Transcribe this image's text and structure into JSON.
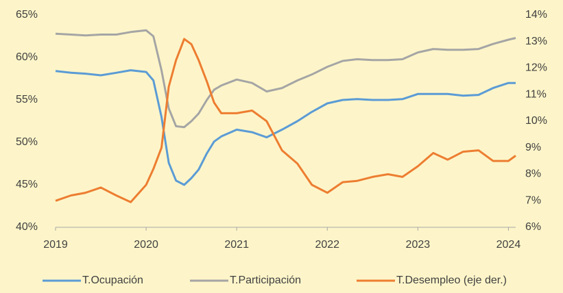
{
  "chart_data": {
    "type": "line",
    "x": [
      2019,
      2019.17,
      2019.33,
      2019.5,
      2019.67,
      2019.83,
      2020,
      2020.08,
      2020.17,
      2020.25,
      2020.33,
      2020.42,
      2020.5,
      2020.58,
      2020.67,
      2020.75,
      2020.83,
      2021,
      2021.17,
      2021.33,
      2021.5,
      2021.67,
      2021.83,
      2022,
      2022.17,
      2022.33,
      2022.5,
      2022.67,
      2022.83,
      2023,
      2023.17,
      2023.33,
      2023.5,
      2023.67,
      2023.83,
      2024,
      2024.08
    ],
    "series": [
      {
        "name": "T.Ocupación",
        "color": "#5b9bd5",
        "axis": "y",
        "values": [
          58.4,
          58.2,
          58.1,
          57.9,
          58.2,
          58.5,
          58.3,
          57.3,
          53.0,
          47.6,
          45.5,
          45.0,
          45.8,
          46.8,
          48.7,
          50.1,
          50.7,
          51.5,
          51.2,
          50.6,
          51.5,
          52.5,
          53.6,
          54.6,
          55.0,
          55.1,
          55.0,
          55.0,
          55.1,
          55.7,
          55.7,
          55.7,
          55.5,
          55.6,
          56.4,
          57.0,
          57.0
        ]
      },
      {
        "name": "T.Participación",
        "color": "#a5a5a5",
        "axis": "y",
        "values": [
          62.8,
          62.7,
          62.6,
          62.7,
          62.7,
          63.0,
          63.2,
          62.5,
          58.5,
          54.0,
          51.9,
          51.8,
          52.5,
          53.4,
          55.0,
          56.2,
          56.7,
          57.4,
          57.0,
          56.0,
          56.4,
          57.3,
          58.0,
          58.9,
          59.6,
          59.8,
          59.7,
          59.7,
          59.8,
          60.6,
          61.0,
          60.9,
          60.9,
          61.0,
          61.6,
          62.1,
          62.3
        ]
      },
      {
        "name": "T.Desempleo (eje der.)",
        "color": "#ed7d31",
        "axis": "y2",
        "values": [
          7.0,
          7.2,
          7.3,
          7.5,
          7.2,
          6.95,
          7.6,
          8.2,
          9.0,
          11.3,
          12.3,
          13.1,
          12.9,
          12.3,
          11.5,
          10.7,
          10.3,
          10.3,
          10.4,
          10.0,
          8.9,
          8.4,
          7.6,
          7.3,
          7.7,
          7.75,
          7.9,
          8.0,
          7.9,
          8.3,
          8.8,
          8.55,
          8.85,
          8.9,
          8.5,
          8.5,
          8.7
        ]
      }
    ],
    "xlim": [
      2019,
      2024.08
    ],
    "xticks": [
      2019,
      2020,
      2021,
      2022,
      2023,
      2024
    ],
    "ylim": [
      40,
      65
    ],
    "yticks": [
      {
        "value": 40,
        "label": "40%"
      },
      {
        "value": 45,
        "label": "45%"
      },
      {
        "value": 50,
        "label": "50%"
      },
      {
        "value": 55,
        "label": "55%"
      },
      {
        "value": 60,
        "label": "60%"
      },
      {
        "value": 65,
        "label": "65%"
      }
    ],
    "y2lim": [
      6,
      14
    ],
    "y2ticks": [
      {
        "value": 6,
        "label": "6%"
      },
      {
        "value": 7,
        "label": "7%"
      },
      {
        "value": 8,
        "label": "8%"
      },
      {
        "value": 9,
        "label": "9%"
      },
      {
        "value": 10,
        "label": "10%"
      },
      {
        "value": 11,
        "label": "11%"
      },
      {
        "value": 12,
        "label": "12%"
      },
      {
        "value": 13,
        "label": "13%"
      },
      {
        "value": 14,
        "label": "14%"
      }
    ],
    "grid": false,
    "legend": "bottom"
  }
}
